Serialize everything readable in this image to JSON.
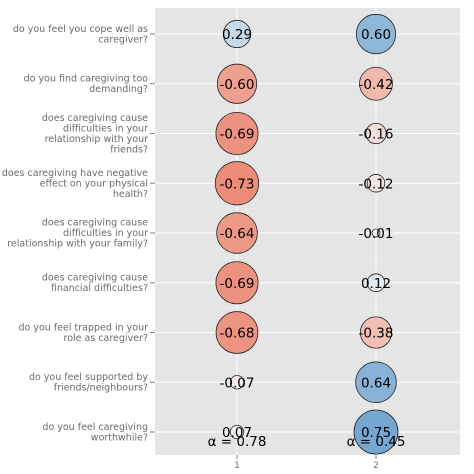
{
  "chart_data": {
    "type": "scatter",
    "title": "",
    "xlabel": "",
    "ylabel": "",
    "x_categories": [
      "1",
      "2"
    ],
    "rows": [
      "do you feel you cope well as caregiver?",
      "do you find caregiving too demanding?",
      "does caregiving cause difficulties in your relationship with your friends?",
      "does caregiving have negative effect on your physical health?",
      "does caregiving cause difficulties in your relationship with your family?",
      "does caregiving cause financial difficulties?",
      "do you feel trapped in your role as caregiver?",
      "do you feel supported by friends/neighbours?",
      "do you feel caregiving worthwhile?"
    ],
    "row_label_lines": [
      [
        "do you feel you cope well as",
        "caregiver?"
      ],
      [
        "do you find caregiving too",
        "demanding?"
      ],
      [
        "does caregiving cause",
        "difficulties in your",
        "relationship with your",
        "friends?"
      ],
      [
        "does caregiving have negative",
        "effect on your physical",
        "health?"
      ],
      [
        "does caregiving cause",
        "difficulties in your",
        "relationship with your family?"
      ],
      [
        "does caregiving cause",
        "financial difficulties?"
      ],
      [
        "do you feel trapped in your",
        "role as caregiver?"
      ],
      [
        "do you feel supported by",
        "friends/neighbours?"
      ],
      [
        "do you feel caregiving",
        "worthwhile?"
      ]
    ],
    "series": [
      {
        "values": [
          0.29,
          -0.6,
          -0.69,
          -0.73,
          -0.64,
          -0.69,
          -0.68,
          -0.07,
          0.07
        ],
        "labels": [
          "0.29",
          "-0.60",
          "-0.69",
          "-0.73",
          "-0.64",
          "-0.69",
          "-0.68",
          "-0.07",
          "0.07"
        ]
      },
      {
        "values": [
          0.6,
          -0.42,
          -0.16,
          -0.12,
          -0.01,
          0.12,
          -0.38,
          0.64,
          0.75
        ],
        "labels": [
          "0.60",
          "-0.42",
          "-0.16",
          "-0.12",
          "-0.01",
          "0.12",
          "-0.38",
          "0.64",
          "0.75"
        ]
      }
    ],
    "alpha_labels": [
      "α = 0.78",
      "α = 0.45"
    ],
    "color_scale": {
      "negative": "#e8644a",
      "neutral": "#f7f7f7",
      "positive": "#4a8cc4"
    },
    "panel_background": "#e5e5e5",
    "grid": true
  }
}
